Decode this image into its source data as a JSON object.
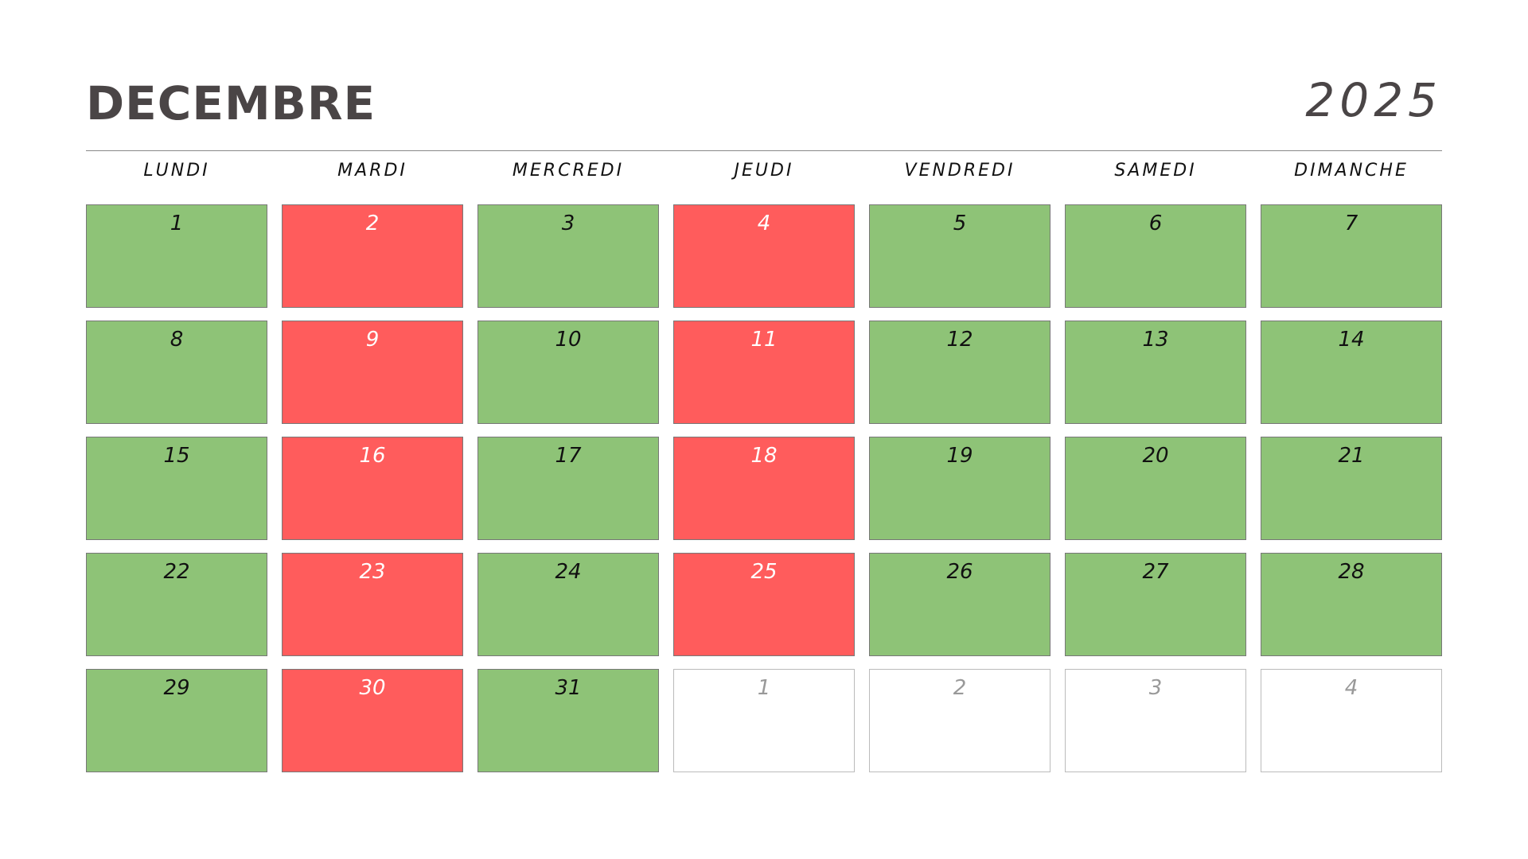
{
  "header": {
    "month": "DECEMBRE",
    "year": "2025"
  },
  "weekdays": [
    "LUNDI",
    "MARDI",
    "MERCREDI",
    "JEUDI",
    "VENDREDI",
    "SAMEDI",
    "DIMANCHE"
  ],
  "weeks": [
    [
      {
        "day": 1,
        "color": "#8ec377"
      },
      {
        "day": 2,
        "color": "#ff5c5c"
      },
      {
        "day": 3,
        "color": "#8ec377"
      },
      {
        "day": 4,
        "color": "#ff5c5c"
      },
      {
        "day": 5,
        "color": "#8ec377"
      },
      {
        "day": 6,
        "color": "#8ec377"
      },
      {
        "day": 7,
        "color": "#8ec377"
      }
    ],
    [
      {
        "day": 8,
        "color": "#8ec377"
      },
      {
        "day": 9,
        "color": "#ff5c5c"
      },
      {
        "day": 10,
        "color": "#8ec377"
      },
      {
        "day": 11,
        "color": "#ff5c5c"
      },
      {
        "day": 12,
        "color": "#8ec377"
      },
      {
        "day": 13,
        "color": "#8ec377"
      },
      {
        "day": 14,
        "color": "#8ec377"
      }
    ],
    [
      {
        "day": 15,
        "color": "#8ec377"
      },
      {
        "day": 16,
        "color": "#ff5c5c"
      },
      {
        "day": 17,
        "color": "#8ec377"
      },
      {
        "day": 18,
        "color": "#ff5c5c"
      },
      {
        "day": 19,
        "color": "#8ec377"
      },
      {
        "day": 20,
        "color": "#8ec377"
      },
      {
        "day": 21,
        "color": "#8ec377"
      }
    ],
    [
      {
        "day": 22,
        "color": "#8ec377"
      },
      {
        "day": 23,
        "color": "#ff5c5c"
      },
      {
        "day": 24,
        "color": "#8ec377"
      },
      {
        "day": 25,
        "color": "#ff5c5c"
      },
      {
        "day": 26,
        "color": "#8ec377"
      },
      {
        "day": 27,
        "color": "#8ec377"
      },
      {
        "day": 28,
        "color": "#8ec377"
      }
    ],
    [
      {
        "day": 29,
        "color": "#8ec377"
      },
      {
        "day": 30,
        "color": "#ff5c5c"
      },
      {
        "day": 31,
        "color": "#8ec377"
      },
      {
        "day": 1,
        "color": "#ffffff"
      },
      {
        "day": 2,
        "color": "#ffffff"
      },
      {
        "day": 3,
        "color": "#ffffff"
      },
      {
        "day": 4,
        "color": "#ffffff"
      }
    ]
  ]
}
